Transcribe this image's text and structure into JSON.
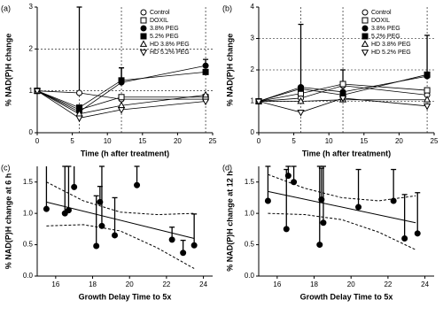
{
  "chart_data": [
    {
      "type": "line",
      "panel_label": "(a)",
      "x_label": "Time (h after treatment)",
      "y_label": "% NAD(P)H change",
      "x": [
        0,
        6,
        12,
        24
      ],
      "xlim": [
        0,
        25
      ],
      "xticks": [
        0,
        5,
        10,
        15,
        20,
        25
      ],
      "ylim": [
        0,
        3
      ],
      "yticks": [
        0,
        1,
        2,
        3
      ],
      "grid_x": [
        6,
        12,
        24
      ],
      "grid_y": [
        1,
        2
      ],
      "legend": "upper right",
      "series": [
        {
          "name": "Control",
          "color": "#000000",
          "marker": "circle-open",
          "values": [
            1,
            0.95,
            0.8,
            0.8
          ],
          "errors": [
            null,
            2.05,
            null,
            null
          ]
        },
        {
          "name": "DOXIL",
          "color": "#000000",
          "marker": "square-open",
          "values": [
            1,
            0.55,
            0.85,
            0.85
          ]
        },
        {
          "name": "3.8% PEG",
          "color": "#000000",
          "marker": "circle-filled",
          "values": [
            1,
            0.5,
            1.2,
            1.6
          ],
          "errors": [
            null,
            null,
            0.35,
            0.15
          ]
        },
        {
          "name": "5.2% PEG",
          "color": "#000000",
          "marker": "square-filled",
          "values": [
            1,
            0.6,
            1.25,
            1.45
          ],
          "errors": [
            null,
            null,
            0.3,
            null
          ]
        },
        {
          "name": "HD 3.8% PEG",
          "color": "#000000",
          "marker": "triangle-up",
          "values": [
            1,
            0.45,
            0.65,
            0.9
          ]
        },
        {
          "name": "HD 5.2% PEG",
          "color": "#000000",
          "marker": "triangle-down",
          "values": [
            1,
            0.35,
            0.55,
            0.75
          ]
        }
      ]
    },
    {
      "type": "line",
      "panel_label": "(b)",
      "x_label": "Time (h after treatment)",
      "y_label": "% NAD(P)H change",
      "x": [
        0,
        6,
        12,
        24
      ],
      "xlim": [
        0,
        25
      ],
      "xticks": [
        0,
        5,
        10,
        15,
        20,
        25
      ],
      "ylim": [
        0,
        4
      ],
      "yticks": [
        0,
        1,
        2,
        3,
        4
      ],
      "grid_x": [
        6,
        12,
        24
      ],
      "grid_y": [
        1,
        2,
        3
      ],
      "legend": "upper right",
      "series": [
        {
          "name": "Control",
          "color": "#000000",
          "marker": "circle-open",
          "values": [
            1,
            1.1,
            1.5,
            1.2
          ]
        },
        {
          "name": "DOXIL",
          "color": "#000000",
          "marker": "square-open",
          "values": [
            1,
            1.25,
            1.55,
            1.35
          ],
          "errors": [
            null,
            null,
            0.45,
            null
          ]
        },
        {
          "name": "3.8% PEG",
          "color": "#000000",
          "marker": "circle-filled",
          "values": [
            1,
            1.45,
            1.3,
            1.8
          ],
          "errors": [
            null,
            2.0,
            null,
            1.3
          ]
        },
        {
          "name": "5.2% PEG",
          "color": "#000000",
          "marker": "square-filled",
          "values": [
            1,
            1.4,
            1.2,
            1.85
          ]
        },
        {
          "name": "HD 3.8% PEG",
          "color": "#000000",
          "marker": "triangle-up",
          "values": [
            1,
            1.0,
            1.05,
            1.05
          ]
        },
        {
          "name": "HD 5.2% PEG",
          "color": "#000000",
          "marker": "triangle-down",
          "values": [
            1,
            0.65,
            1.1,
            0.85
          ]
        }
      ]
    },
    {
      "type": "scatter",
      "panel_label": "(c)",
      "x_label": "Growth Delay Time to 5x",
      "y_label": "% NAD(P)H change at 6 h",
      "xlim": [
        15,
        24.5
      ],
      "xticks": [
        16,
        18,
        20,
        22,
        24
      ],
      "ylim": [
        0,
        1.75
      ],
      "yticks": [
        {
          "value": 0,
          "label": "0.0"
        },
        0.5,
        {
          "value": 1,
          "label": "1.0"
        },
        1.5
      ],
      "color": "#000000",
      "x": [
        15.5,
        16.5,
        16.7,
        17.0,
        18.2,
        18.4,
        18.5,
        19.2,
        20.4,
        22.3,
        22.9,
        23.5
      ],
      "values": [
        1.07,
        1.0,
        1.05,
        1.42,
        0.48,
        1.18,
        0.8,
        0.65,
        1.45,
        0.58,
        0.37,
        0.49
      ],
      "errors": [
        0.7,
        0.75,
        0.7,
        0.35,
        0.8,
        0.25,
        0.95,
        0.6,
        0.3,
        0.2,
        0.2,
        0.5
      ],
      "lines": [
        {
          "style": "solid",
          "x": [
            15.5,
            23.5
          ],
          "y": [
            1.18,
            0.6
          ]
        },
        {
          "style": "dashed",
          "x": [
            15.5,
            17.5,
            19.5,
            21.5,
            23.5
          ],
          "y": [
            1.5,
            1.2,
            1.02,
            0.98,
            1.0
          ]
        },
        {
          "style": "dashed",
          "x": [
            15.5,
            17.5,
            19.5,
            21.5,
            23.5
          ],
          "y": [
            0.8,
            0.82,
            0.72,
            0.45,
            0.12
          ]
        }
      ]
    },
    {
      "type": "scatter",
      "panel_label": "(d)",
      "x_label": "Growth Delay Time to 5x",
      "y_label": "% NAD(P)H change at 12 h",
      "xlim": [
        15,
        24.5
      ],
      "xticks": [
        16,
        18,
        20,
        22,
        24
      ],
      "ylim": [
        0,
        1.75
      ],
      "yticks": [
        {
          "value": 0,
          "label": "0.0"
        },
        0.5,
        {
          "value": 1,
          "label": "1.0"
        },
        1.5
      ],
      "color": "#000000",
      "x": [
        15.5,
        16.5,
        16.6,
        16.9,
        18.3,
        18.4,
        18.5,
        20.4,
        22.3,
        22.9,
        23.6
      ],
      "values": [
        1.2,
        0.75,
        1.6,
        1.5,
        0.5,
        1.22,
        0.85,
        1.1,
        1.2,
        0.6,
        0.68
      ],
      "errors": [
        0.55,
        0.95,
        0.15,
        0.25,
        1.25,
        0.5,
        0.9,
        0.6,
        0.5,
        0.7,
        0.65
      ],
      "lines": [
        {
          "style": "solid",
          "x": [
            15.5,
            23.5
          ],
          "y": [
            1.35,
            0.85
          ]
        },
        {
          "style": "dashed",
          "x": [
            15.5,
            17.5,
            19.5,
            21.5,
            23.5
          ],
          "y": [
            1.62,
            1.4,
            1.25,
            1.2,
            1.28
          ]
        },
        {
          "style": "dashed",
          "x": [
            15.5,
            17.5,
            19.5,
            21.5,
            23.5
          ],
          "y": [
            1.0,
            0.98,
            0.9,
            0.7,
            0.42
          ]
        }
      ]
    }
  ]
}
